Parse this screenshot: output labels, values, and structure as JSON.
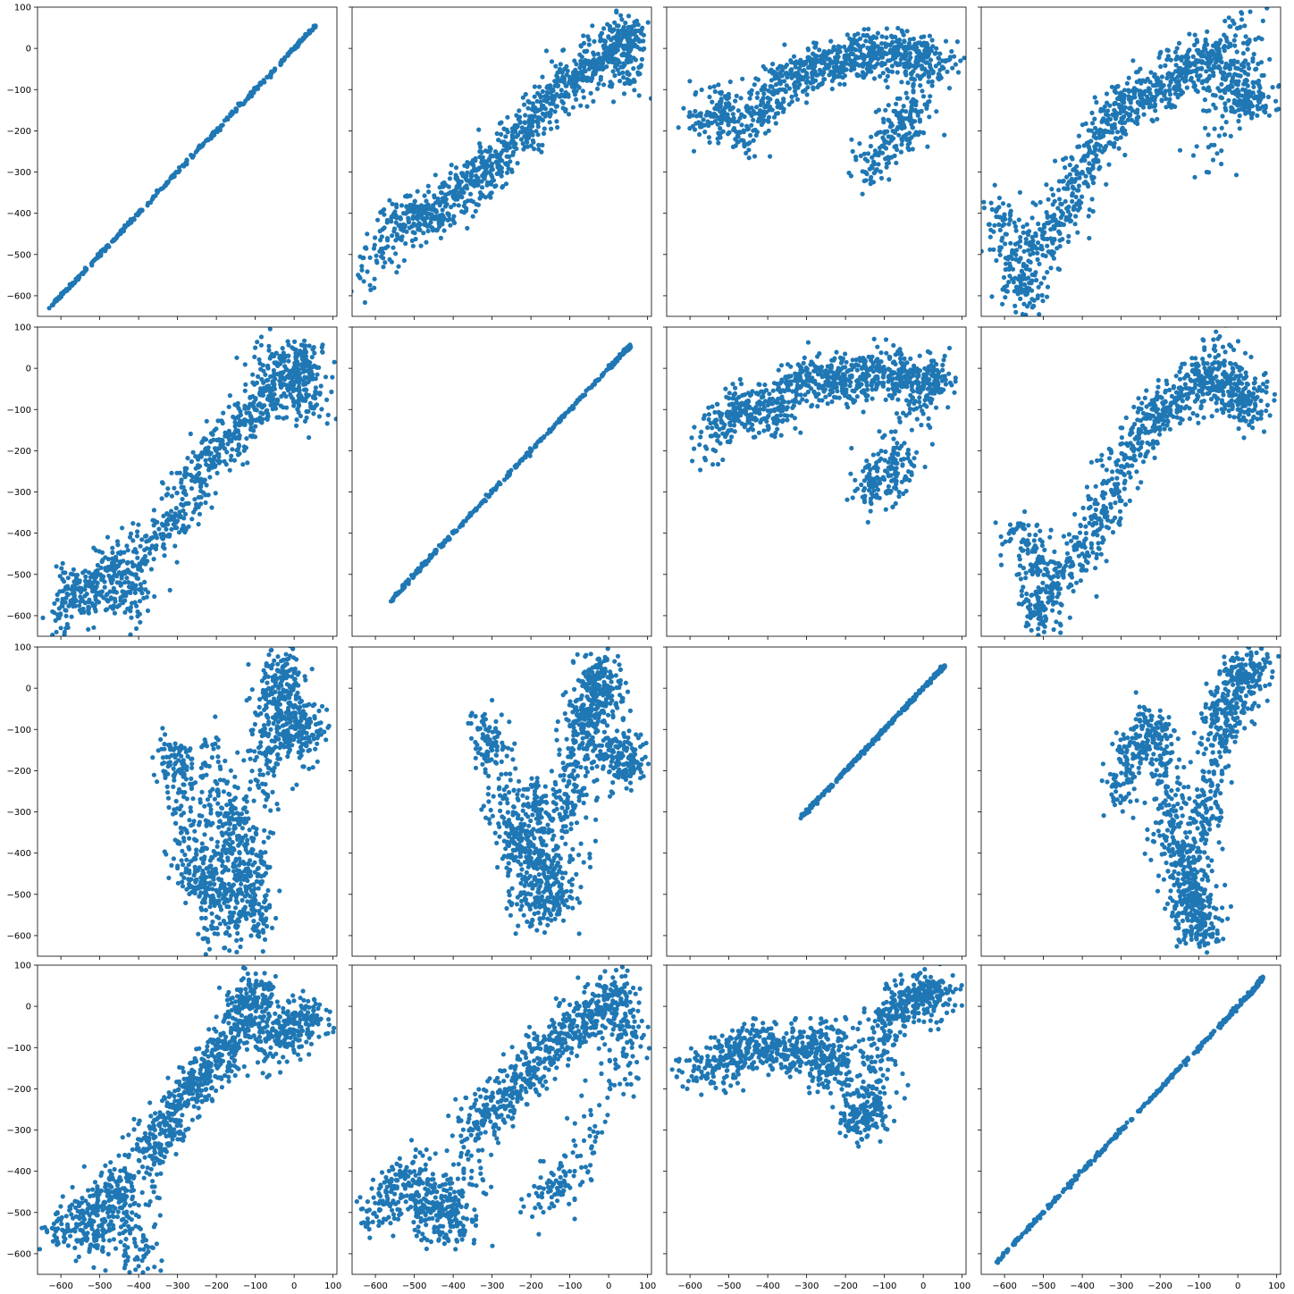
{
  "chart_data": {
    "type": "scatter",
    "layout": "4x4 pairwise scatter matrix",
    "shared_x_axis_per_column": true,
    "shared_y_axis_per_row": true,
    "xlim": [
      -660,
      110
    ],
    "ylim": [
      -650,
      100
    ],
    "x_ticks": [
      -600,
      -500,
      -400,
      -300,
      -200,
      -100,
      0,
      100
    ],
    "y_ticks": [
      -600,
      -500,
      -400,
      -300,
      -200,
      -100,
      0,
      100
    ],
    "x_tick_labels": [
      "−600",
      "−500",
      "−400",
      "−300",
      "−200",
      "−100",
      "0",
      "100"
    ],
    "y_tick_labels": [
      "−600",
      "−500",
      "−400",
      "−300",
      "−200",
      "−100",
      "0",
      "100"
    ],
    "marker_color": "#1f77b4",
    "grid": false,
    "panels": [
      {
        "row": 0,
        "col": 0,
        "shape": "identity",
        "points": [
          [
            -630,
            -630
          ],
          [
            -560,
            -560
          ],
          [
            -480,
            -480
          ],
          [
            -400,
            -400
          ],
          [
            -300,
            -300
          ],
          [
            -200,
            -200
          ],
          [
            -100,
            -100
          ],
          [
            0,
            0
          ],
          [
            55,
            55
          ]
        ]
      },
      {
        "row": 0,
        "col": 1,
        "shape": "diagonal-cloud",
        "points": [
          [
            -630,
            -565
          ],
          [
            -540,
            -430
          ],
          [
            -500,
            -390
          ],
          [
            -450,
            -410
          ],
          [
            -400,
            -350
          ],
          [
            -350,
            -330
          ],
          [
            -300,
            -280
          ],
          [
            -250,
            -230
          ],
          [
            -200,
            -180
          ],
          [
            -150,
            -120
          ],
          [
            -100,
            -80
          ],
          [
            -50,
            -50
          ],
          [
            0,
            -20
          ],
          [
            30,
            10
          ],
          [
            50,
            40
          ],
          [
            40,
            -110
          ]
        ]
      },
      {
        "row": 0,
        "col": 2,
        "shape": "horizontal-cloud",
        "points": [
          [
            -570,
            -190
          ],
          [
            -520,
            -110
          ],
          [
            -460,
            -230
          ],
          [
            -400,
            -120
          ],
          [
            -350,
            -70
          ],
          [
            -300,
            -60
          ],
          [
            -250,
            -40
          ],
          [
            -200,
            -30
          ],
          [
            -150,
            -20
          ],
          [
            -100,
            -10
          ],
          [
            -50,
            0
          ],
          [
            0,
            -30
          ],
          [
            50,
            -30
          ],
          [
            -150,
            -300
          ],
          [
            -60,
            -190
          ],
          [
            -20,
            -150
          ]
        ]
      },
      {
        "row": 0,
        "col": 3,
        "shape": "split-cloud",
        "points": [
          [
            -620,
            -390
          ],
          [
            -580,
            -490
          ],
          [
            -550,
            -620
          ],
          [
            -500,
            -450
          ],
          [
            -450,
            -400
          ],
          [
            -400,
            -300
          ],
          [
            -350,
            -200
          ],
          [
            -300,
            -150
          ],
          [
            -250,
            -120
          ],
          [
            -200,
            -100
          ],
          [
            -150,
            -60
          ],
          [
            -100,
            -30
          ],
          [
            -50,
            -10
          ],
          [
            0,
            -130
          ],
          [
            50,
            -140
          ],
          [
            10,
            70
          ],
          [
            -80,
            -300
          ]
        ]
      },
      {
        "row": 1,
        "col": 0,
        "shape": "diagonal-cloud",
        "points": [
          [
            -600,
            -630
          ],
          [
            -560,
            -510
          ],
          [
            -520,
            -570
          ],
          [
            -460,
            -460
          ],
          [
            -420,
            -580
          ],
          [
            -380,
            -420
          ],
          [
            -300,
            -370
          ],
          [
            -250,
            -260
          ],
          [
            -200,
            -200
          ],
          [
            -150,
            -150
          ],
          [
            -100,
            -100
          ],
          [
            -50,
            -50
          ],
          [
            0,
            -10
          ],
          [
            30,
            30
          ],
          [
            50,
            -110
          ],
          [
            -100,
            50
          ]
        ]
      },
      {
        "row": 1,
        "col": 1,
        "shape": "identity",
        "points": [
          [
            -560,
            -565
          ],
          [
            -480,
            -480
          ],
          [
            -400,
            -400
          ],
          [
            -300,
            -300
          ],
          [
            -200,
            -200
          ],
          [
            -100,
            -100
          ],
          [
            0,
            0
          ],
          [
            40,
            40
          ],
          [
            55,
            55
          ]
        ]
      },
      {
        "row": 1,
        "col": 2,
        "shape": "horizontal-cloud",
        "points": [
          [
            -560,
            -190
          ],
          [
            -500,
            -120
          ],
          [
            -450,
            -60
          ],
          [
            -400,
            -140
          ],
          [
            -350,
            -50
          ],
          [
            -300,
            -30
          ],
          [
            -250,
            -20
          ],
          [
            -200,
            -40
          ],
          [
            -150,
            -20
          ],
          [
            -100,
            -10
          ],
          [
            -50,
            0
          ],
          [
            0,
            -50
          ],
          [
            40,
            -10
          ],
          [
            -150,
            -310
          ],
          [
            -100,
            -270
          ],
          [
            -50,
            -220
          ]
        ]
      },
      {
        "row": 1,
        "col": 3,
        "shape": "split-cloud",
        "points": [
          [
            -570,
            -390
          ],
          [
            -520,
            -480
          ],
          [
            -510,
            -620
          ],
          [
            -480,
            -510
          ],
          [
            -400,
            -450
          ],
          [
            -350,
            -350
          ],
          [
            -300,
            -250
          ],
          [
            -250,
            -150
          ],
          [
            -200,
            -120
          ],
          [
            -150,
            -60
          ],
          [
            -100,
            -20
          ],
          [
            -50,
            -40
          ],
          [
            0,
            -100
          ],
          [
            50,
            -70
          ],
          [
            -90,
            70
          ]
        ]
      },
      {
        "row": 2,
        "col": 0,
        "shape": "vertical-cloud",
        "points": [
          [
            -310,
            -150
          ],
          [
            -290,
            -200
          ],
          [
            -270,
            -390
          ],
          [
            -240,
            -470
          ],
          [
            -210,
            -510
          ],
          [
            -200,
            -120
          ],
          [
            -180,
            -630
          ],
          [
            -160,
            -300
          ],
          [
            -140,
            -400
          ],
          [
            -120,
            -500
          ],
          [
            -100,
            -580
          ],
          [
            -80,
            -250
          ],
          [
            -60,
            -100
          ],
          [
            -40,
            0
          ],
          [
            -30,
            50
          ],
          [
            -10,
            -120
          ],
          [
            20,
            -60
          ],
          [
            40,
            -150
          ]
        ]
      },
      {
        "row": 2,
        "col": 1,
        "shape": "vertical-cloud",
        "points": [
          [
            -320,
            -90
          ],
          [
            -300,
            -150
          ],
          [
            -250,
            -350
          ],
          [
            -230,
            -380
          ],
          [
            -200,
            -570
          ],
          [
            -190,
            -250
          ],
          [
            -170,
            -380
          ],
          [
            -150,
            -480
          ],
          [
            -130,
            -540
          ],
          [
            -110,
            -300
          ],
          [
            -90,
            -200
          ],
          [
            -70,
            -100
          ],
          [
            -50,
            -50
          ],
          [
            -30,
            0
          ],
          [
            -20,
            50
          ],
          [
            0,
            -150
          ],
          [
            40,
            -200
          ],
          [
            50,
            -120
          ]
        ]
      },
      {
        "row": 2,
        "col": 2,
        "shape": "identity",
        "points": [
          [
            -315,
            -315
          ],
          [
            -270,
            -270
          ],
          [
            -200,
            -200
          ],
          [
            -150,
            -150
          ],
          [
            -100,
            -100
          ],
          [
            -50,
            -50
          ],
          [
            0,
            0
          ],
          [
            40,
            40
          ],
          [
            55,
            55
          ]
        ]
      },
      {
        "row": 2,
        "col": 3,
        "shape": "vertical-cloud",
        "points": [
          [
            -310,
            -270
          ],
          [
            -270,
            -160
          ],
          [
            -240,
            -80
          ],
          [
            -200,
            -120
          ],
          [
            -180,
            -300
          ],
          [
            -150,
            -400
          ],
          [
            -130,
            -470
          ],
          [
            -120,
            -530
          ],
          [
            -110,
            -540
          ],
          [
            -100,
            -620
          ],
          [
            -90,
            -350
          ],
          [
            -70,
            -250
          ],
          [
            -50,
            -100
          ],
          [
            -30,
            -50
          ],
          [
            0,
            0
          ],
          [
            20,
            40
          ],
          [
            40,
            60
          ]
        ]
      },
      {
        "row": 3,
        "col": 0,
        "shape": "split-cloud",
        "points": [
          [
            -620,
            -570
          ],
          [
            -540,
            -500
          ],
          [
            -510,
            -580
          ],
          [
            -480,
            -460
          ],
          [
            -450,
            -420
          ],
          [
            -400,
            -630
          ],
          [
            -380,
            -350
          ],
          [
            -340,
            -300
          ],
          [
            -300,
            -250
          ],
          [
            -260,
            -200
          ],
          [
            -220,
            -150
          ],
          [
            -180,
            -100
          ],
          [
            -150,
            -50
          ],
          [
            -120,
            0
          ],
          [
            -100,
            50
          ],
          [
            -60,
            -100
          ],
          [
            -20,
            -60
          ],
          [
            20,
            -20
          ],
          [
            60,
            -30
          ]
        ]
      },
      {
        "row": 3,
        "col": 1,
        "shape": "split-cloud",
        "points": [
          [
            -620,
            -515
          ],
          [
            -560,
            -450
          ],
          [
            -500,
            -400
          ],
          [
            -470,
            -530
          ],
          [
            -430,
            -460
          ],
          [
            -390,
            -570
          ],
          [
            -350,
            -300
          ],
          [
            -300,
            -250
          ],
          [
            -250,
            -200
          ],
          [
            -200,
            -150
          ],
          [
            -150,
            -100
          ],
          [
            -100,
            -50
          ],
          [
            -50,
            -20
          ],
          [
            0,
            0
          ],
          [
            20,
            30
          ],
          [
            60,
            -100
          ],
          [
            -100,
            -400
          ],
          [
            -180,
            -480
          ]
        ]
      },
      {
        "row": 3,
        "col": 2,
        "shape": "horizontal-cloud",
        "points": [
          [
            -620,
            -160
          ],
          [
            -520,
            -140
          ],
          [
            -480,
            -110
          ],
          [
            -430,
            -100
          ],
          [
            -380,
            -90
          ],
          [
            -330,
            -120
          ],
          [
            -280,
            -80
          ],
          [
            -250,
            -180
          ],
          [
            -220,
            -60
          ],
          [
            -170,
            -250
          ],
          [
            -150,
            -300
          ],
          [
            -120,
            -200
          ],
          [
            -100,
            -40
          ],
          [
            -60,
            0
          ],
          [
            -20,
            30
          ],
          [
            20,
            20
          ],
          [
            50,
            30
          ]
        ]
      },
      {
        "row": 3,
        "col": 3,
        "shape": "identity",
        "points": [
          [
            -620,
            -620
          ],
          [
            -540,
            -540
          ],
          [
            -450,
            -450
          ],
          [
            -350,
            -350
          ],
          [
            -250,
            -250
          ],
          [
            -150,
            -150
          ],
          [
            -50,
            -50
          ],
          [
            0,
            0
          ],
          [
            40,
            40
          ],
          [
            65,
            70
          ]
        ]
      }
    ]
  }
}
